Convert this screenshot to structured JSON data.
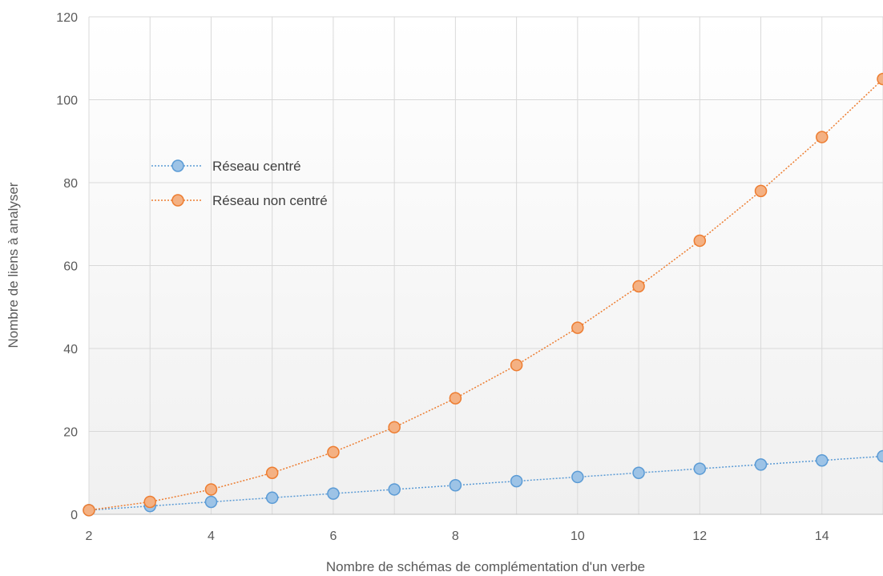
{
  "chart_data": {
    "type": "line",
    "title": "",
    "xlabel": "Nombre de schémas de complémentation d'un verbe",
    "ylabel": "Nombre de liens à analyser",
    "xlim": [
      2,
      15
    ],
    "ylim": [
      0,
      120
    ],
    "x_ticks": [
      "2",
      "4",
      "6",
      "8",
      "10",
      "12",
      "14"
    ],
    "y_ticks": [
      "0",
      "20",
      "40",
      "60",
      "80",
      "100",
      "120"
    ],
    "grid": true,
    "legend_position": "top-left",
    "x": [
      2,
      3,
      4,
      5,
      6,
      7,
      8,
      9,
      10,
      11,
      12,
      13,
      14,
      15
    ],
    "series": [
      {
        "name": "Réseau centré",
        "color": "#5b9bd5",
        "marker_fill": "#9dc3e6",
        "values": [
          1,
          2,
          3,
          4,
          5,
          6,
          7,
          8,
          9,
          10,
          11,
          12,
          13,
          14
        ]
      },
      {
        "name": "Réseau non centré",
        "color": "#ed7d31",
        "marker_fill": "#f4b183",
        "values": [
          1,
          3,
          6,
          10,
          15,
          21,
          28,
          36,
          45,
          55,
          66,
          78,
          91,
          105
        ]
      }
    ]
  }
}
